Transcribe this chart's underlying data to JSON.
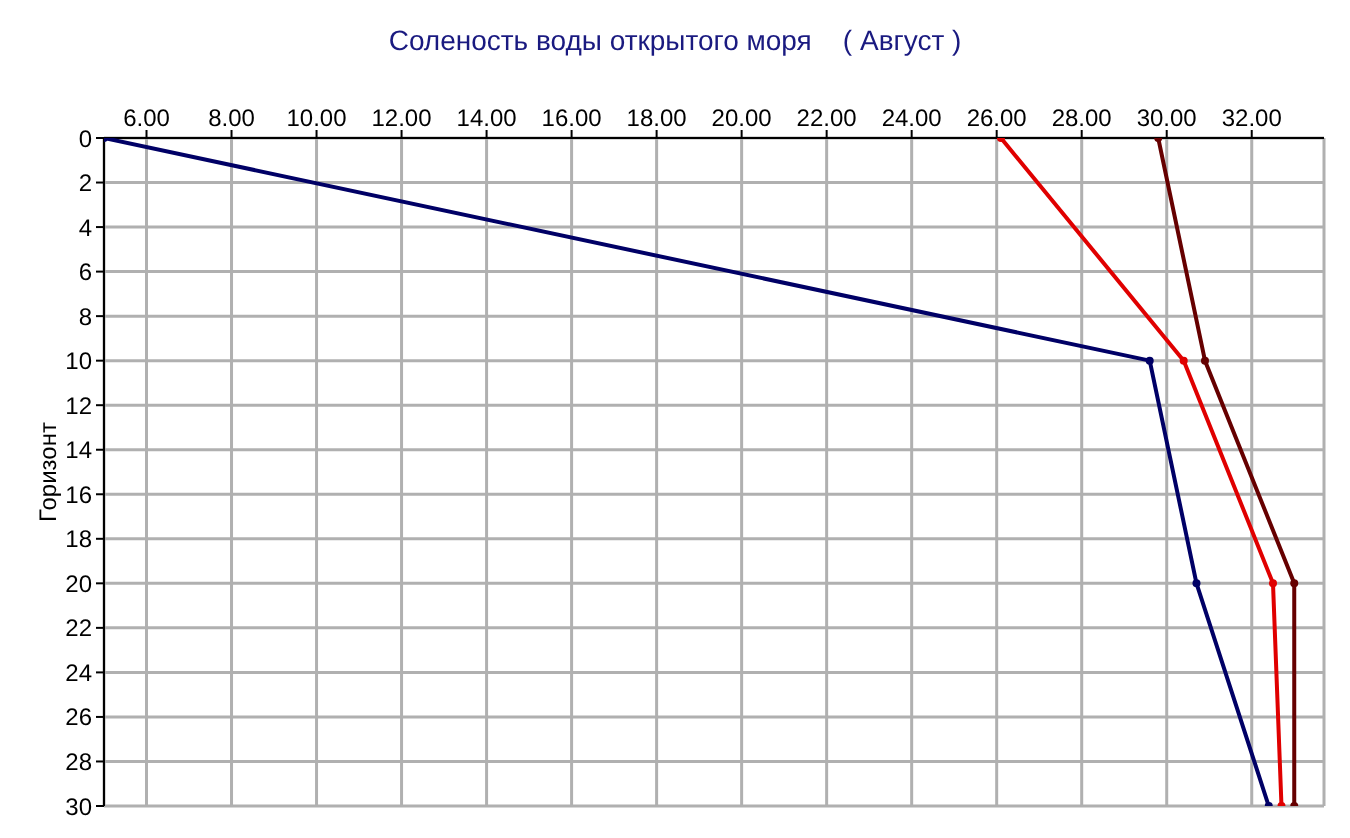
{
  "chart_data": {
    "type": "line",
    "title": "Соленость воды открытого моря    ( Август )",
    "ylabel": "Горизонт",
    "xlim": [
      5,
      33.7
    ],
    "xticks": [
      {
        "value": 6,
        "label": "6.00"
      },
      {
        "value": 8,
        "label": "8.00"
      },
      {
        "value": 10,
        "label": "10.00"
      },
      {
        "value": 12,
        "label": "12.00"
      },
      {
        "value": 14,
        "label": "14.00"
      },
      {
        "value": 16,
        "label": "16.00"
      },
      {
        "value": 18,
        "label": "18.00"
      },
      {
        "value": 20,
        "label": "20.00"
      },
      {
        "value": 22,
        "label": "22.00"
      },
      {
        "value": 24,
        "label": "24.00"
      },
      {
        "value": 26,
        "label": "26.00"
      },
      {
        "value": 28,
        "label": "28.00"
      },
      {
        "value": 30,
        "label": "30.00"
      },
      {
        "value": 32,
        "label": "32.00"
      }
    ],
    "ylim": [
      30,
      0
    ],
    "yticks": [
      0,
      2,
      4,
      6,
      8,
      10,
      12,
      14,
      16,
      18,
      20,
      22,
      24,
      26,
      28,
      30
    ],
    "grid": true,
    "marker": "circle",
    "line_style": "solid",
    "series": [
      {
        "color": "#000066",
        "x": [
          5,
          29.6,
          30.7,
          32.4
        ],
        "values": [
          0,
          10,
          20,
          30
        ]
      },
      {
        "color": "#e00000",
        "x": [
          26.1,
          30.4,
          32.5,
          32.7
        ],
        "values": [
          0,
          10,
          20,
          30
        ]
      },
      {
        "color": "#660000",
        "x": [
          29.8,
          30.9,
          33.0,
          33.0
        ],
        "values": [
          0,
          10,
          20,
          30
        ]
      }
    ]
  }
}
